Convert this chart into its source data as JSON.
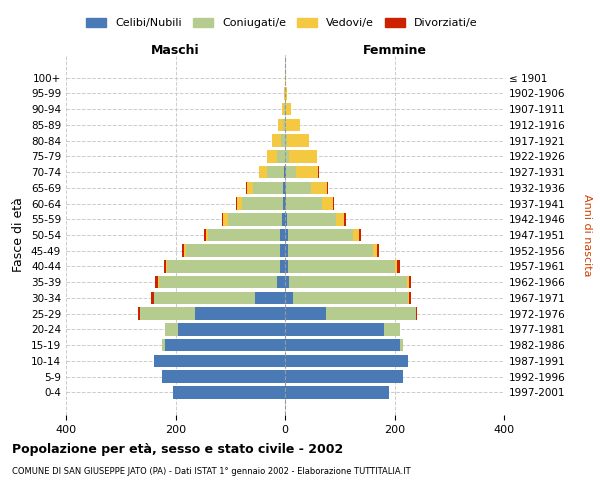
{
  "age_groups": [
    "0-4",
    "5-9",
    "10-14",
    "15-19",
    "20-24",
    "25-29",
    "30-34",
    "35-39",
    "40-44",
    "45-49",
    "50-54",
    "55-59",
    "60-64",
    "65-69",
    "70-74",
    "75-79",
    "80-84",
    "85-89",
    "90-94",
    "95-99",
    "100+"
  ],
  "birth_years": [
    "1997-2001",
    "1992-1996",
    "1987-1991",
    "1982-1986",
    "1977-1981",
    "1972-1976",
    "1967-1971",
    "1962-1966",
    "1957-1961",
    "1952-1956",
    "1947-1951",
    "1942-1946",
    "1937-1941",
    "1932-1936",
    "1927-1931",
    "1922-1926",
    "1917-1921",
    "1912-1916",
    "1907-1911",
    "1902-1906",
    "≤ 1901"
  ],
  "colors": {
    "celibe": "#4a7ab5",
    "coniugato": "#b5cc8e",
    "vedovo": "#f5c842",
    "divorziato": "#cc2200"
  },
  "males": {
    "celibe": [
      205,
      225,
      240,
      220,
      195,
      165,
      55,
      15,
      10,
      10,
      10,
      5,
      3,
      3,
      2,
      0,
      0,
      0,
      0,
      0,
      0
    ],
    "coniugato": [
      0,
      0,
      0,
      5,
      25,
      100,
      185,
      215,
      205,
      170,
      130,
      100,
      75,
      55,
      30,
      15,
      8,
      3,
      1,
      0,
      0
    ],
    "vedovo": [
      0,
      0,
      0,
      0,
      0,
      0,
      0,
      2,
      3,
      5,
      5,
      8,
      10,
      12,
      15,
      18,
      15,
      10,
      5,
      2,
      0
    ],
    "divorziato": [
      0,
      0,
      0,
      0,
      0,
      3,
      5,
      5,
      3,
      3,
      3,
      2,
      2,
      1,
      0,
      0,
      0,
      0,
      0,
      0,
      0
    ]
  },
  "females": {
    "celibe": [
      190,
      215,
      225,
      210,
      180,
      75,
      15,
      8,
      5,
      5,
      5,
      3,
      2,
      2,
      1,
      0,
      0,
      0,
      0,
      0,
      0
    ],
    "coniugato": [
      0,
      0,
      0,
      5,
      30,
      165,
      210,
      215,
      195,
      155,
      120,
      90,
      65,
      45,
      20,
      8,
      4,
      2,
      1,
      0,
      0
    ],
    "vedovo": [
      0,
      0,
      0,
      0,
      0,
      0,
      2,
      3,
      5,
      8,
      10,
      15,
      20,
      30,
      40,
      50,
      40,
      25,
      10,
      3,
      1
    ],
    "divorziato": [
      0,
      0,
      0,
      0,
      0,
      2,
      4,
      5,
      5,
      4,
      4,
      3,
      2,
      2,
      1,
      0,
      0,
      0,
      0,
      0,
      0
    ]
  },
  "title": "Popolazione per età, sesso e stato civile - 2002",
  "subtitle": "COMUNE DI SAN GIUSEPPE JATO (PA) - Dati ISTAT 1° gennaio 2002 - Elaborazione TUTTITALIA.IT",
  "xlabel_left": "Maschi",
  "xlabel_right": "Femmine",
  "ylabel": "Fasce di età",
  "ylabel_right": "Anni di nascita",
  "legend_labels": [
    "Celibi/Nubili",
    "Coniugati/e",
    "Vedovi/e",
    "Divorziati/e"
  ],
  "xlim": 400,
  "background_color": "#ffffff",
  "grid_color": "#cccccc"
}
